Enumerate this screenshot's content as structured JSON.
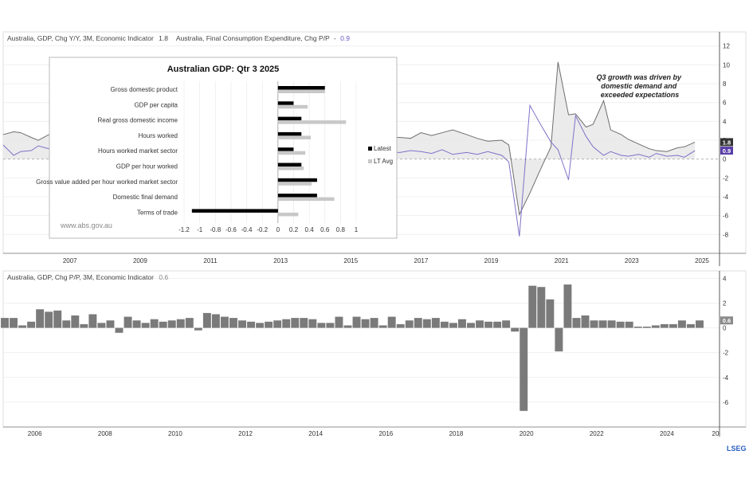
{
  "colors": {
    "gdp_yy": "#6e6e6e",
    "consumption": "#8070c8",
    "bars_bottom": "#7a7a7a",
    "latest": "#000000",
    "lt_avg": "#c8c8c8",
    "badge_dark": "#333333",
    "badge_purple": "#5a3fa8",
    "badge_grey": "#8a8a8a",
    "brand": "#2a5fc1"
  },
  "top_panel": {
    "legend": {
      "series1_label": "Australia, GDP, Chg Y/Y, 3M, Economic Indicator",
      "series1_value": "1.8",
      "series2_label": "Australia, Final Consumption Expenditure, Chg P/P",
      "series2_marker": "-",
      "series2_value": "0.9"
    },
    "annotation": [
      "Q3 growth was driven by",
      "domestic demand and",
      "exceeded expectations"
    ]
  },
  "bottom_panel": {
    "legend": {
      "series_label": "Australia, GDP, Chg P/P, 3M, Economic Indicator",
      "series_value": "0.6"
    }
  },
  "inset": {
    "title": "Australian GDP:  Qtr 3 2025",
    "source": "www.abs.gov.au",
    "legend_latest": "Latest",
    "legend_lt": "LT Avg"
  },
  "brand_text": "LSEG",
  "chart_data": [
    {
      "type": "line",
      "id": "gdp_yoy_and_consumption",
      "x_ticks": [
        "2007",
        "2009",
        "2011",
        "2013",
        "2015",
        "2017",
        "2019",
        "2021",
        "2023",
        "2025"
      ],
      "y_ticks": [
        "12",
        "10",
        "8",
        "6",
        "4",
        "2",
        "0",
        "-2",
        "-4",
        "-6",
        "-8"
      ],
      "ylim": [
        -10,
        13.5
      ],
      "x_range": [
        2005.6,
        2026.0
      ],
      "series": [
        {
          "name": "Australia, GDP, Chg Y/Y, 3M, Economic Indicator",
          "last_value": "1.8",
          "points": [
            [
              2005.6,
              2.6
            ],
            [
              2005.9,
              2.9
            ],
            [
              2006.1,
              2.8
            ],
            [
              2006.4,
              2.3
            ],
            [
              2006.6,
              2.0
            ],
            [
              2006.9,
              2.6
            ],
            [
              2016.9,
              2.3
            ],
            [
              2017.2,
              2.2
            ],
            [
              2017.5,
              2.8
            ],
            [
              2017.8,
              2.5
            ],
            [
              2018.1,
              2.8
            ],
            [
              2018.4,
              3.1
            ],
            [
              2018.8,
              2.6
            ],
            [
              2019.1,
              2.2
            ],
            [
              2019.4,
              1.9
            ],
            [
              2019.8,
              2.0
            ],
            [
              2020.0,
              1.5
            ],
            [
              2020.3,
              -5.9
            ],
            [
              2020.6,
              -3.6
            ],
            [
              2020.9,
              -1.1
            ],
            [
              2021.2,
              1.3
            ],
            [
              2021.4,
              10.3
            ],
            [
              2021.7,
              4.7
            ],
            [
              2021.9,
              4.8
            ],
            [
              2022.2,
              3.4
            ],
            [
              2022.4,
              3.7
            ],
            [
              2022.7,
              6.2
            ],
            [
              2022.9,
              3.1
            ],
            [
              2023.2,
              2.6
            ],
            [
              2023.4,
              2.1
            ],
            [
              2023.7,
              1.6
            ],
            [
              2024.0,
              1.1
            ],
            [
              2024.2,
              0.9
            ],
            [
              2024.5,
              0.8
            ],
            [
              2024.8,
              1.2
            ],
            [
              2025.0,
              1.3
            ],
            [
              2025.3,
              1.8
            ]
          ]
        },
        {
          "name": "Australia, Final Consumption Expenditure, Chg P/P",
          "last_value": "0.9",
          "points": [
            [
              2005.6,
              1.5
            ],
            [
              2005.9,
              0.4
            ],
            [
              2006.1,
              0.8
            ],
            [
              2006.4,
              0.9
            ],
            [
              2006.6,
              1.4
            ],
            [
              2006.9,
              1.1
            ],
            [
              2016.9,
              0.7
            ],
            [
              2017.2,
              0.9
            ],
            [
              2017.5,
              0.8
            ],
            [
              2017.8,
              0.6
            ],
            [
              2018.1,
              1.0
            ],
            [
              2018.4,
              0.5
            ],
            [
              2018.8,
              0.7
            ],
            [
              2019.1,
              0.5
            ],
            [
              2019.4,
              0.8
            ],
            [
              2019.8,
              0.4
            ],
            [
              2020.0,
              -0.3
            ],
            [
              2020.3,
              -8.2
            ],
            [
              2020.6,
              5.7
            ],
            [
              2020.9,
              3.7
            ],
            [
              2021.2,
              1.8
            ],
            [
              2021.4,
              1.0
            ],
            [
              2021.7,
              -2.2
            ],
            [
              2021.9,
              4.6
            ],
            [
              2022.2,
              2.4
            ],
            [
              2022.4,
              1.3
            ],
            [
              2022.7,
              0.4
            ],
            [
              2022.9,
              0.8
            ],
            [
              2023.2,
              0.4
            ],
            [
              2023.4,
              0.3
            ],
            [
              2023.7,
              0.5
            ],
            [
              2024.0,
              0.2
            ],
            [
              2024.2,
              0.6
            ],
            [
              2024.5,
              0.3
            ],
            [
              2024.8,
              0.4
            ],
            [
              2025.0,
              0.2
            ],
            [
              2025.3,
              0.9
            ]
          ]
        }
      ]
    },
    {
      "type": "bar",
      "id": "gdp_qoq",
      "x_ticks": [
        "2006",
        "2008",
        "2010",
        "2012",
        "2014",
        "2016",
        "2018",
        "2020",
        "2022",
        "2024",
        "20"
      ],
      "y_ticks": [
        "4",
        "2",
        "0",
        "-2",
        "-4",
        "-6"
      ],
      "ylim": [
        -8,
        4.6
      ],
      "x_range": [
        2005.6,
        2026.0
      ],
      "series": [
        {
          "name": "Australia, GDP, Chg P/P, 3M, Economic Indicator",
          "last_value": "0.6",
          "values": [
            0.8,
            0.8,
            0.2,
            0.5,
            1.5,
            1.3,
            1.4,
            0.6,
            1.0,
            0.3,
            1.1,
            0.4,
            0.6,
            -0.4,
            0.9,
            0.6,
            0.4,
            0.7,
            0.5,
            0.6,
            0.7,
            0.8,
            -0.2,
            1.2,
            1.1,
            0.9,
            0.8,
            0.6,
            0.5,
            0.4,
            0.5,
            0.6,
            0.7,
            0.8,
            0.8,
            0.7,
            0.4,
            0.4,
            0.9,
            0.2,
            0.9,
            0.7,
            0.8,
            0.2,
            0.9,
            0.3,
            0.6,
            0.8,
            0.7,
            0.8,
            0.5,
            0.4,
            0.7,
            0.4,
            0.6,
            0.5,
            0.5,
            0.6,
            -0.3,
            -6.7,
            3.4,
            3.3,
            2.3,
            -1.9,
            3.5,
            0.8,
            1.0,
            0.6,
            0.6,
            0.6,
            0.5,
            0.5,
            0.1,
            0.1,
            0.2,
            0.3,
            0.3,
            0.6,
            0.3,
            0.6
          ]
        }
      ]
    },
    {
      "type": "bar",
      "id": "inset_gdp_q3_2025",
      "title": "Australian GDP:  Qtr 3 2025",
      "orientation": "horizontal",
      "categories": [
        "Gross domestic product",
        "GDP per capita",
        "Real gross domestic income",
        "Hours worked",
        "Hours worked market sector",
        "GDP per hour worked",
        "Gross value added per hour worked market sector",
        "Domestic final demand",
        "Terms of trade"
      ],
      "xlim": [
        -1.2,
        1
      ],
      "x_ticks": [
        "-1.2",
        "-1",
        "-0.8",
        "-0.6",
        "-0.4",
        "-0.2",
        "0",
        "0.2",
        "0.4",
        "0.6",
        "0.8",
        "1"
      ],
      "series": [
        {
          "name": "Latest",
          "values": [
            0.6,
            0.2,
            0.3,
            0.3,
            0.2,
            0.3,
            0.5,
            0.5,
            -1.1
          ]
        },
        {
          "name": "LT Avg",
          "values": [
            0.6,
            0.38,
            0.87,
            0.42,
            0.35,
            0.33,
            0.43,
            0.72,
            0.26
          ]
        }
      ]
    }
  ]
}
